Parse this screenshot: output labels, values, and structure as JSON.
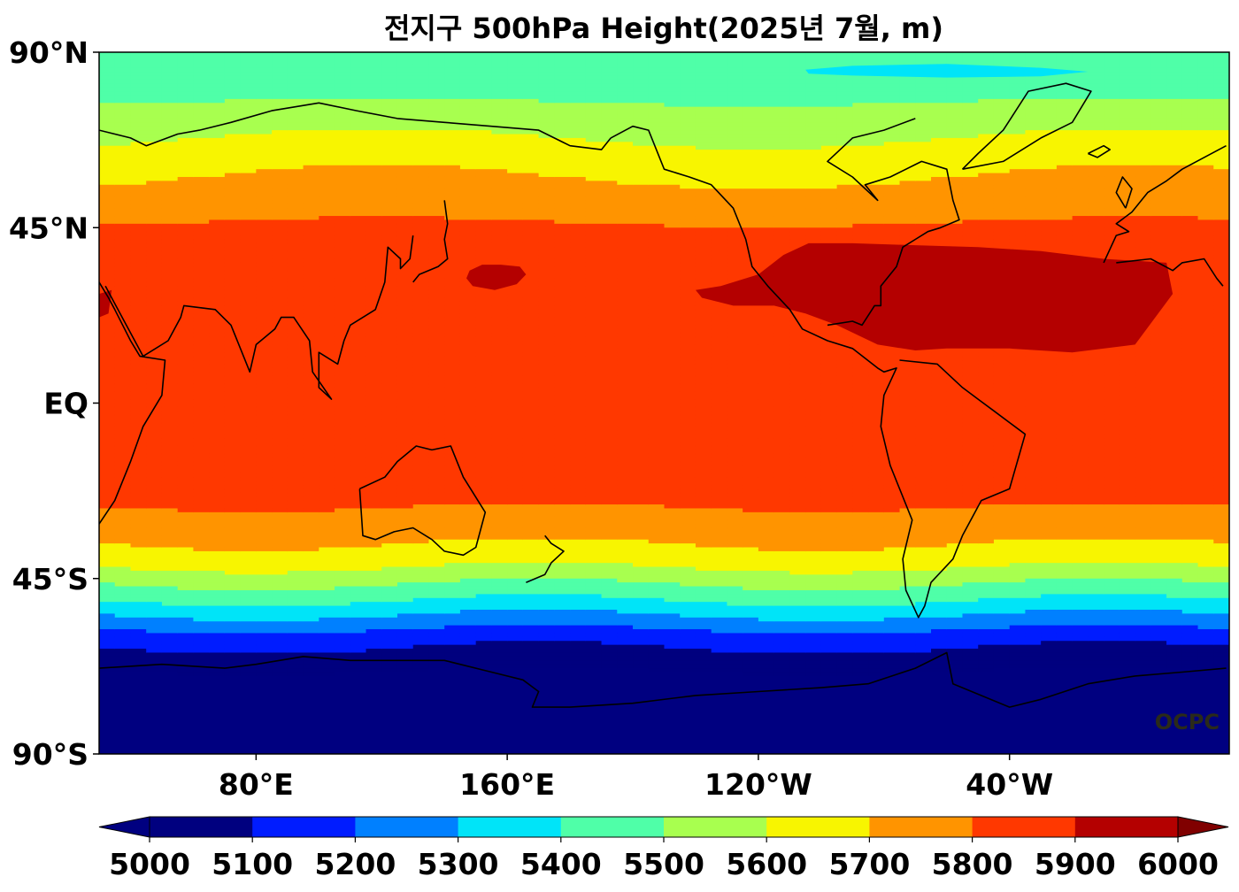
{
  "chart_data": {
    "type": "heatmap",
    "title": "전지구 500hPa Height(2025년 7월, m)",
    "xlabel": "",
    "ylabel": "",
    "x_range": [
      30,
      390
    ],
    "y_range": [
      -90,
      90
    ],
    "lat_ticks": [
      {
        "value": 90,
        "label": "90°N"
      },
      {
        "value": 45,
        "label": "45°N"
      },
      {
        "value": 0,
        "label": "EQ"
      },
      {
        "value": -45,
        "label": "45°S"
      },
      {
        "value": -90,
        "label": "90°S"
      }
    ],
    "lon_ticks": [
      {
        "value": 80,
        "label": "80°E"
      },
      {
        "value": 160,
        "label": "160°E"
      },
      {
        "value": 240,
        "label": "120°W"
      },
      {
        "value": 320,
        "label": "40°W"
      }
    ],
    "colorbar": {
      "levels": [
        5000,
        5100,
        5200,
        5300,
        5400,
        5500,
        5600,
        5700,
        5800,
        5900,
        6000
      ],
      "level_labels": [
        "5000",
        "5100",
        "5200",
        "5300",
        "5400",
        "5500",
        "5600",
        "5700",
        "5800",
        "5900",
        "6000"
      ],
      "colors": [
        "#00007f",
        "#001cff",
        "#0080ff",
        "#00e4f8",
        "#4fffa8",
        "#a8ff4f",
        "#f8f500",
        "#ff9400",
        "#ff3800",
        "#b40000"
      ],
      "under_color": "#000080",
      "over_color": "#800000",
      "extend": "both"
    },
    "zonal_profile": [
      {
        "lat": 90,
        "value": 5460
      },
      {
        "lat": 80,
        "value": 5470
      },
      {
        "lat": 70,
        "value": 5580
      },
      {
        "lat": 60,
        "value": 5680
      },
      {
        "lat": 50,
        "value": 5770
      },
      {
        "lat": 40,
        "value": 5850
      },
      {
        "lat": 30,
        "value": 5880
      },
      {
        "lat": 20,
        "value": 5870
      },
      {
        "lat": 0,
        "value": 5860
      },
      {
        "lat": -20,
        "value": 5840
      },
      {
        "lat": -30,
        "value": 5780
      },
      {
        "lat": -40,
        "value": 5650
      },
      {
        "lat": -50,
        "value": 5420
      },
      {
        "lat": -60,
        "value": 5150
      },
      {
        "lat": -70,
        "value": 4980
      },
      {
        "lat": -90,
        "value": 4900
      }
    ],
    "grid": false,
    "watermark": "OCPC"
  }
}
